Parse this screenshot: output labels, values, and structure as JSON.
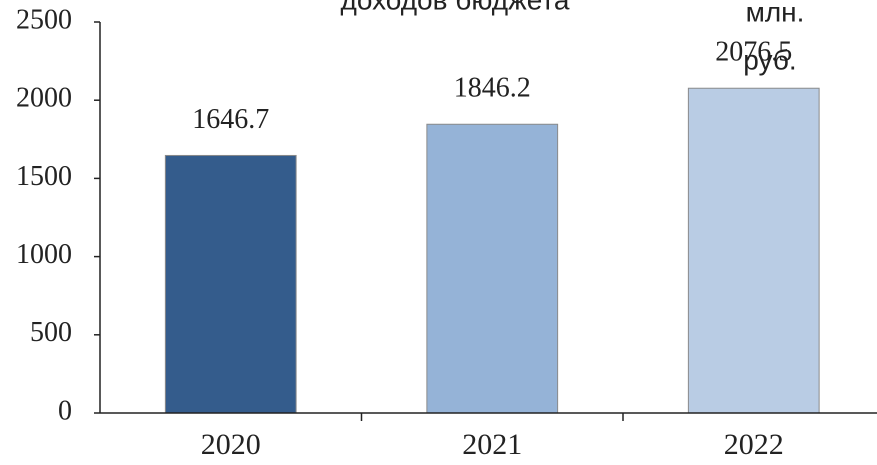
{
  "chart_data": {
    "type": "bar",
    "title": "доходов бюджета",
    "unit_label": [
      "млн.",
      "руб."
    ],
    "categories": [
      "2020",
      "2021",
      "2022"
    ],
    "values": [
      1646.7,
      1846.2,
      2076.5
    ],
    "colors": [
      "#345c8c",
      "#95b3d7",
      "#b9cce4"
    ],
    "ylim": [
      0,
      2500
    ],
    "yticks": [
      0,
      500,
      1000,
      1500,
      2000,
      2500
    ]
  }
}
